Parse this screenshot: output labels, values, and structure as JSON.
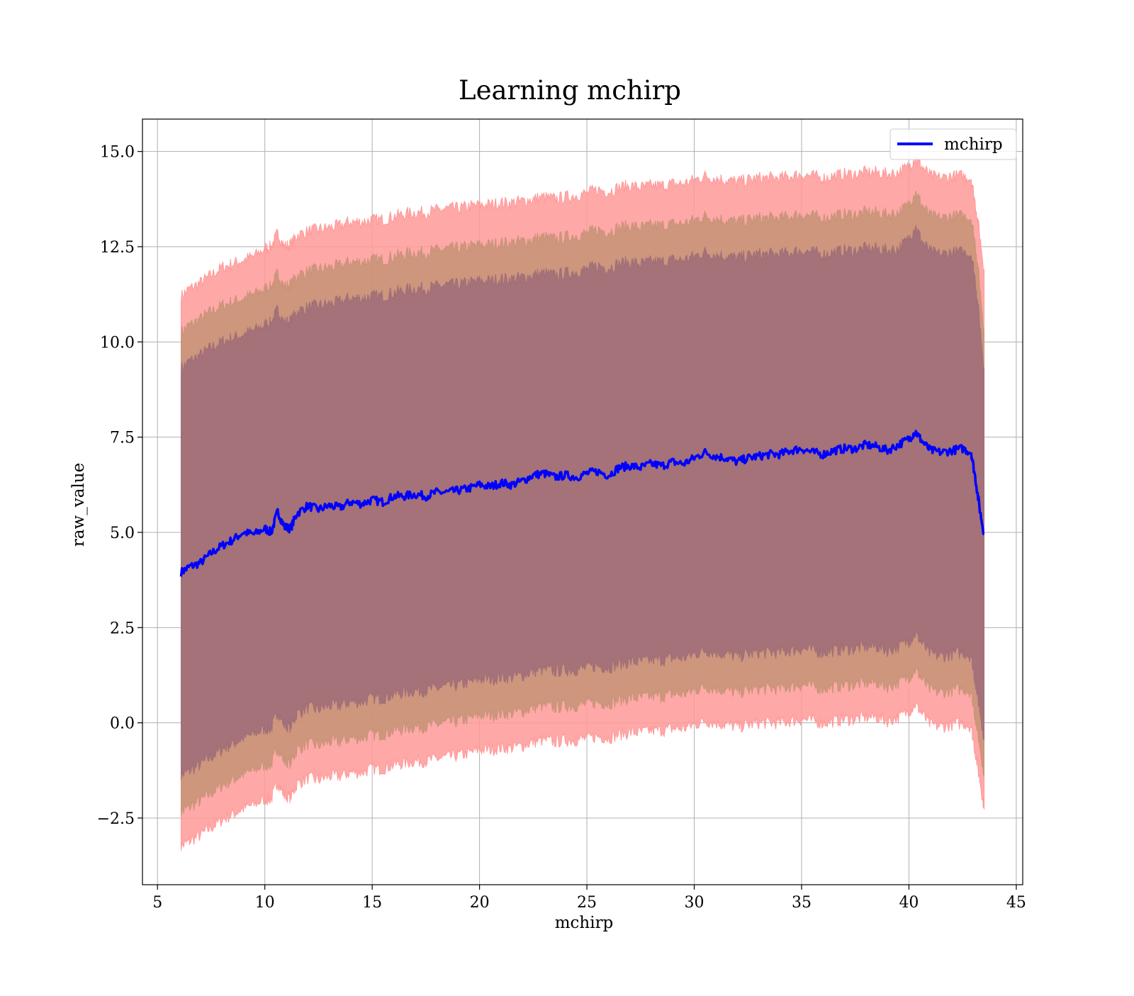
{
  "chart_data": {
    "type": "line",
    "title": "Learning mchirp",
    "xlabel": "mchirp",
    "ylabel": "raw_value",
    "xlim": [
      4.3,
      45.3
    ],
    "ylim": [
      -4.25,
      15.85
    ],
    "x_ticks": [
      5,
      10,
      15,
      20,
      25,
      30,
      35,
      40,
      45
    ],
    "x_tick_labels": [
      "5",
      "10",
      "15",
      "20",
      "25",
      "30",
      "35",
      "40",
      "45"
    ],
    "y_ticks": [
      -2.5,
      0.0,
      2.5,
      5.0,
      7.5,
      10.0,
      12.5,
      15.0
    ],
    "y_tick_labels": [
      "−2.5",
      "0.0",
      "2.5",
      "5.0",
      "7.5",
      "10.0",
      "12.5",
      "15.0"
    ],
    "grid": true,
    "legend": {
      "position": "top-right",
      "entries": [
        "mchirp"
      ]
    },
    "colors": {
      "line": "#0000ff",
      "band_outer": "#ff9999",
      "band_middle": "#c89478",
      "band_inner": "#a06e78"
    },
    "series": [
      {
        "name": "mchirp",
        "x": [
          6.1,
          6.5,
          7.0,
          7.5,
          8.0,
          8.5,
          9.0,
          9.5,
          10.0,
          10.3,
          10.6,
          10.9,
          11.2,
          11.5,
          12.0,
          12.5,
          13.0,
          13.5,
          14.0,
          14.5,
          15.0,
          15.5,
          16.0,
          16.5,
          17.0,
          17.5,
          18.0,
          18.5,
          19.0,
          19.5,
          20.0,
          20.5,
          21.0,
          21.5,
          22.0,
          22.5,
          23.0,
          23.5,
          24.0,
          24.5,
          25.0,
          25.5,
          26.0,
          26.5,
          27.0,
          27.5,
          28.0,
          28.5,
          29.0,
          29.5,
          30.0,
          30.5,
          31.0,
          31.5,
          32.0,
          32.5,
          33.0,
          33.5,
          34.0,
          34.5,
          35.0,
          35.5,
          36.0,
          36.5,
          37.0,
          37.5,
          38.0,
          38.5,
          39.0,
          39.5,
          40.0,
          40.3,
          40.6,
          41.0,
          41.5,
          42.0,
          42.5,
          42.9,
          43.1,
          43.3,
          43.5
        ],
        "y": [
          3.95,
          4.1,
          4.2,
          4.45,
          4.65,
          4.8,
          5.0,
          4.95,
          5.1,
          5.0,
          5.55,
          5.15,
          5.1,
          5.5,
          5.7,
          5.6,
          5.7,
          5.65,
          5.8,
          5.75,
          5.85,
          5.8,
          5.95,
          5.95,
          6.0,
          5.95,
          6.05,
          6.05,
          6.1,
          6.15,
          6.25,
          6.2,
          6.3,
          6.25,
          6.35,
          6.5,
          6.55,
          6.45,
          6.5,
          6.45,
          6.55,
          6.6,
          6.5,
          6.7,
          6.75,
          6.7,
          6.8,
          6.75,
          6.85,
          6.8,
          6.95,
          7.1,
          7.0,
          6.95,
          6.85,
          6.95,
          7.0,
          7.05,
          7.05,
          7.15,
          7.2,
          7.1,
          7.05,
          7.15,
          7.2,
          7.2,
          7.3,
          7.25,
          7.15,
          7.3,
          7.45,
          7.65,
          7.4,
          7.15,
          7.1,
          7.15,
          7.2,
          7.1,
          6.4,
          5.6,
          4.95
        ]
      }
    ],
    "bands": [
      {
        "name": "",
        "upper": [
          11.2,
          11.4,
          11.55,
          11.75,
          11.95,
          12.05,
          12.15,
          12.25,
          12.45,
          12.5,
          12.85,
          12.5,
          12.55,
          12.8,
          12.9,
          12.95,
          13.0,
          13.05,
          13.15,
          13.15,
          13.2,
          13.2,
          13.3,
          13.35,
          13.4,
          13.4,
          13.45,
          13.5,
          13.5,
          13.55,
          13.6,
          13.6,
          13.65,
          13.65,
          13.7,
          13.75,
          13.8,
          13.75,
          13.8,
          13.85,
          13.9,
          14.0,
          13.95,
          14.05,
          14.1,
          14.05,
          14.1,
          14.1,
          14.15,
          14.15,
          14.25,
          14.35,
          14.3,
          14.25,
          14.2,
          14.25,
          14.3,
          14.3,
          14.3,
          14.35,
          14.4,
          14.35,
          14.3,
          14.35,
          14.4,
          14.4,
          14.45,
          14.45,
          14.4,
          14.45,
          14.6,
          14.85,
          14.6,
          14.35,
          14.3,
          14.35,
          14.35,
          14.3,
          13.6,
          12.8,
          11.9
        ],
        "lower": [
          -3.25,
          -3.1,
          -2.95,
          -2.75,
          -2.55,
          -2.4,
          -2.25,
          -2.15,
          -2.0,
          -2.0,
          -1.55,
          -1.9,
          -1.95,
          -1.6,
          -1.45,
          -1.5,
          -1.4,
          -1.4,
          -1.3,
          -1.3,
          -1.2,
          -1.2,
          -1.1,
          -1.05,
          -1.0,
          -1.0,
          -0.95,
          -0.9,
          -0.85,
          -0.8,
          -0.7,
          -0.7,
          -0.65,
          -0.65,
          -0.6,
          -0.5,
          -0.45,
          -0.5,
          -0.45,
          -0.45,
          -0.4,
          -0.35,
          -0.4,
          -0.3,
          -0.25,
          -0.25,
          -0.2,
          -0.2,
          -0.15,
          -0.15,
          -0.05,
          0.05,
          0.0,
          -0.05,
          -0.1,
          -0.05,
          0.0,
          0.0,
          0.0,
          0.05,
          0.1,
          0.05,
          0.0,
          0.05,
          0.1,
          0.1,
          0.15,
          0.15,
          0.05,
          0.15,
          0.3,
          0.5,
          0.25,
          -0.05,
          -0.1,
          -0.05,
          0.0,
          -0.1,
          -0.8,
          -1.5,
          -2.2
        ]
      },
      {
        "name": "",
        "upper": [
          10.25,
          10.45,
          10.6,
          10.8,
          10.95,
          11.05,
          11.15,
          11.25,
          11.4,
          11.45,
          11.8,
          11.45,
          11.5,
          11.75,
          11.85,
          11.9,
          11.95,
          12.0,
          12.1,
          12.1,
          12.15,
          12.15,
          12.25,
          12.3,
          12.35,
          12.35,
          12.4,
          12.45,
          12.45,
          12.5,
          12.55,
          12.55,
          12.6,
          12.6,
          12.65,
          12.7,
          12.75,
          12.7,
          12.75,
          12.8,
          12.85,
          12.95,
          12.9,
          13.0,
          13.05,
          13.0,
          13.05,
          13.05,
          13.1,
          13.1,
          13.2,
          13.3,
          13.25,
          13.2,
          13.15,
          13.2,
          13.25,
          13.25,
          13.25,
          13.3,
          13.35,
          13.3,
          13.25,
          13.3,
          13.35,
          13.35,
          13.4,
          13.4,
          13.35,
          13.4,
          13.6,
          13.95,
          13.6,
          13.3,
          13.25,
          13.3,
          13.3,
          13.25,
          12.55,
          11.5,
          10.3
        ],
        "lower": [
          -2.35,
          -2.2,
          -2.05,
          -1.85,
          -1.65,
          -1.5,
          -1.35,
          -1.25,
          -1.1,
          -1.1,
          -0.65,
          -1.0,
          -1.05,
          -0.7,
          -0.55,
          -0.6,
          -0.5,
          -0.5,
          -0.4,
          -0.4,
          -0.3,
          -0.3,
          -0.2,
          -0.15,
          -0.1,
          -0.1,
          -0.05,
          0.0,
          0.05,
          0.1,
          0.2,
          0.2,
          0.25,
          0.25,
          0.3,
          0.4,
          0.45,
          0.4,
          0.45,
          0.45,
          0.5,
          0.55,
          0.5,
          0.6,
          0.65,
          0.65,
          0.7,
          0.7,
          0.75,
          0.75,
          0.85,
          0.95,
          0.9,
          0.85,
          0.8,
          0.85,
          0.9,
          0.9,
          0.9,
          0.95,
          1.0,
          0.95,
          0.9,
          0.95,
          1.0,
          1.0,
          1.05,
          1.05,
          0.95,
          1.05,
          1.2,
          1.4,
          1.15,
          0.85,
          0.8,
          0.85,
          0.9,
          0.8,
          0.1,
          -0.6,
          -1.35
        ]
      },
      {
        "name": "",
        "upper": [
          9.3,
          9.5,
          9.65,
          9.85,
          10.0,
          10.1,
          10.2,
          10.3,
          10.45,
          10.5,
          10.85,
          10.5,
          10.55,
          10.8,
          10.9,
          10.95,
          11.0,
          11.05,
          11.15,
          11.15,
          11.2,
          11.2,
          11.3,
          11.35,
          11.4,
          11.4,
          11.45,
          11.5,
          11.5,
          11.55,
          11.6,
          11.6,
          11.65,
          11.65,
          11.7,
          11.75,
          11.8,
          11.75,
          11.8,
          11.85,
          11.9,
          12.0,
          11.95,
          12.05,
          12.1,
          12.05,
          12.1,
          12.1,
          12.15,
          12.15,
          12.25,
          12.35,
          12.3,
          12.25,
          12.2,
          12.25,
          12.3,
          12.3,
          12.3,
          12.35,
          12.4,
          12.35,
          12.3,
          12.35,
          12.4,
          12.4,
          12.45,
          12.45,
          12.4,
          12.45,
          12.7,
          13.05,
          12.65,
          12.35,
          12.3,
          12.35,
          12.35,
          12.3,
          11.6,
          10.5,
          9.3
        ],
        "lower": [
          -1.4,
          -1.25,
          -1.1,
          -0.9,
          -0.7,
          -0.55,
          -0.4,
          -0.3,
          -0.15,
          -0.15,
          0.3,
          -0.05,
          -0.1,
          0.25,
          0.4,
          0.35,
          0.45,
          0.45,
          0.55,
          0.55,
          0.65,
          0.65,
          0.75,
          0.8,
          0.85,
          0.85,
          0.9,
          0.95,
          1.0,
          1.05,
          1.15,
          1.15,
          1.2,
          1.2,
          1.25,
          1.35,
          1.4,
          1.35,
          1.4,
          1.4,
          1.45,
          1.5,
          1.45,
          1.55,
          1.6,
          1.6,
          1.65,
          1.65,
          1.7,
          1.7,
          1.8,
          1.9,
          1.85,
          1.8,
          1.75,
          1.8,
          1.85,
          1.85,
          1.85,
          1.9,
          1.95,
          1.9,
          1.85,
          1.9,
          1.95,
          1.95,
          2.0,
          2.0,
          1.9,
          2.0,
          2.15,
          2.35,
          2.1,
          1.8,
          1.75,
          1.8,
          1.85,
          1.75,
          1.05,
          0.35,
          -0.4
        ]
      }
    ]
  }
}
